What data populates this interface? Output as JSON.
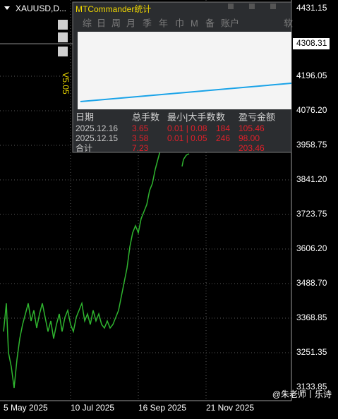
{
  "window": {
    "symbol": "XAUUSD,D...",
    "version": "V5.05"
  },
  "price_axis": [
    "4431.15",
    "4196.05",
    "4076.20",
    "3958.75",
    "3841.20",
    "3723.75",
    "3606.20",
    "3488.70",
    "3368.85",
    "3251.35",
    "3133.85"
  ],
  "current_price": "4308.31",
  "time_axis": [
    "5 May 2025",
    "10 Jul 2025",
    "16 Sep 2025",
    "21 Nov 2025"
  ],
  "panel": {
    "title": "MTCommander统计",
    "tabs": [
      "综",
      "日",
      "周",
      "月",
      "季",
      "年",
      "巾",
      "M",
      "备",
      "账户",
      "软"
    ],
    "table": {
      "header": [
        "日期",
        "总手数",
        "最小|大手数",
        "数",
        "盈亏金额"
      ],
      "rows": [
        [
          "2025.12.16",
          "3.65",
          "0.01 | 0.08",
          "184",
          "105.46"
        ],
        [
          "2025.12.15",
          "3.58",
          "0.01 | 0.05",
          "246",
          "98.00"
        ]
      ],
      "total": {
        "label": "合计",
        "lots": "7.23",
        "profit": "203.46"
      }
    }
  },
  "watermark": "@朱老师丨乐诗"
}
